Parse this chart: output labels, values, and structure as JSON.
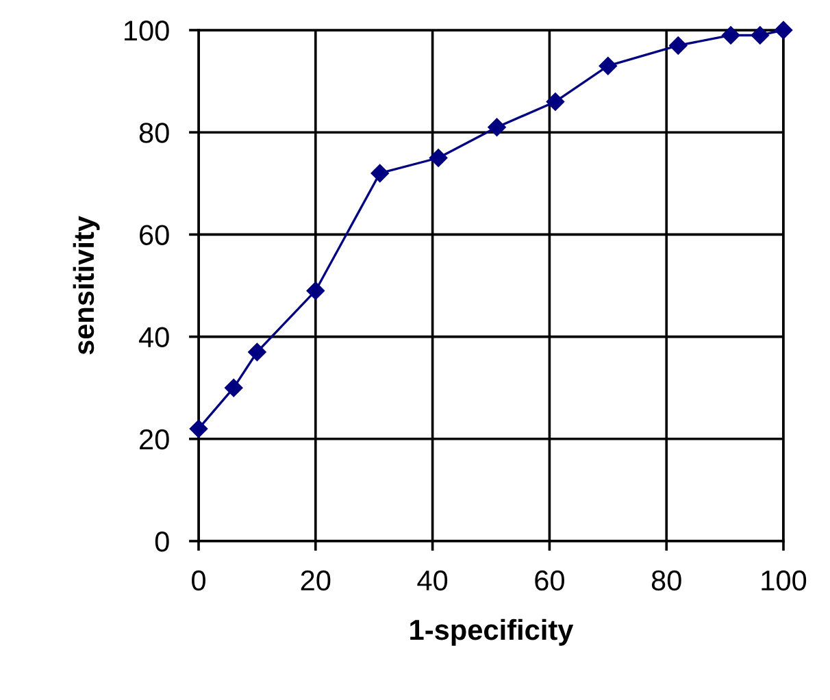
{
  "chart_data": {
    "type": "line",
    "xlabel": "1-specificity",
    "ylabel": "sensitivity",
    "x": [
      0,
      6,
      10,
      20,
      31,
      41,
      51,
      61,
      70,
      82,
      91,
      96,
      100
    ],
    "series": [
      {
        "color": "#000080",
        "values": [
          22,
          30,
          37,
          49,
          72,
          75,
          81,
          86,
          93,
          97,
          99,
          99,
          100
        ]
      }
    ],
    "xlim": [
      0,
      100
    ],
    "ylim": [
      0,
      100
    ],
    "xticks": [
      0,
      20,
      40,
      60,
      80,
      100
    ],
    "yticks": [
      0,
      20,
      40,
      60,
      80,
      100
    ],
    "grid": true,
    "marker": "diamond",
    "line_style": "solid"
  }
}
